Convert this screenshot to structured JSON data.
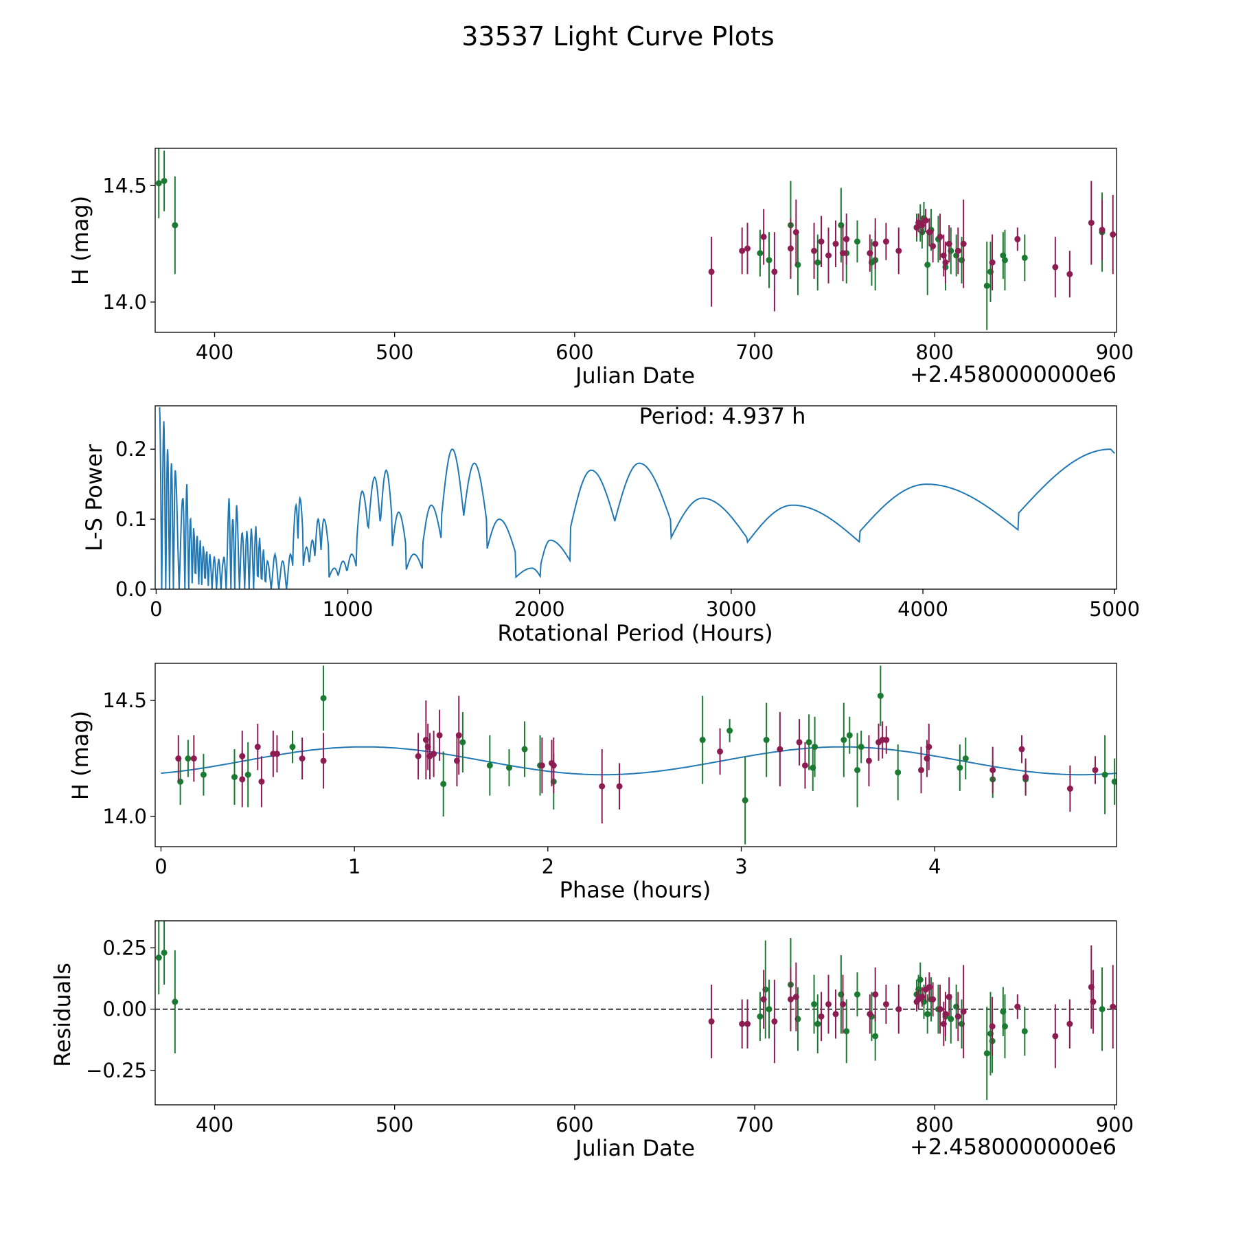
{
  "figure": {
    "title": "33537 Light Curve Plots"
  },
  "colors": {
    "series_a": "#1a7a32",
    "series_b": "#8c1c52",
    "curve": "#1f77b4",
    "axis": "#000000"
  },
  "chart_data": [
    {
      "id": "lightcurve",
      "type": "scatter",
      "title": "",
      "xlabel": "Julian Date",
      "ylabel": "H (mag)",
      "offset_text": "+2.4580000000e6",
      "xlim": [
        367,
        901
      ],
      "ylim": [
        13.87,
        14.66
      ],
      "xticks": [
        400,
        500,
        600,
        700,
        800,
        900
      ],
      "xtick_labels": [
        "400",
        "500",
        "600",
        "700",
        "800",
        "900"
      ],
      "yticks": [
        14.0,
        14.5
      ],
      "ytick_labels": [
        "14.0",
        "14.5"
      ],
      "series": [
        {
          "name": "green",
          "color": "#1a7a32",
          "x": [
            369,
            372,
            378,
            703,
            708,
            720,
            724,
            735,
            748,
            751,
            757,
            765,
            767,
            790,
            792,
            793,
            794,
            796,
            798,
            802,
            806,
            809,
            812,
            815,
            829,
            831,
            838,
            839,
            850,
            893
          ],
          "y": [
            14.51,
            14.52,
            14.33,
            14.21,
            14.18,
            14.33,
            14.16,
            14.17,
            14.33,
            14.21,
            14.26,
            14.17,
            14.18,
            14.32,
            14.34,
            14.3,
            14.36,
            14.16,
            14.31,
            14.27,
            14.15,
            14.22,
            14.2,
            14.18,
            14.07,
            14.13,
            14.2,
            14.18,
            14.19,
            14.3
          ],
          "err": [
            0.15,
            0.13,
            0.21,
            0.1,
            0.12,
            0.19,
            0.13,
            0.12,
            0.16,
            0.13,
            0.09,
            0.1,
            0.13,
            0.06,
            0.08,
            0.07,
            0.07,
            0.13,
            0.09,
            0.1,
            0.1,
            0.1,
            0.09,
            0.1,
            0.19,
            0.13,
            0.1,
            0.13,
            0.1,
            0.17
          ]
        },
        {
          "name": "purple",
          "color": "#8c1c52",
          "x": [
            676,
            693,
            696,
            705,
            711,
            720,
            723,
            733,
            737,
            741,
            745,
            749,
            751,
            764,
            767,
            773,
            780,
            790,
            791,
            793,
            795,
            797,
            799,
            803,
            805,
            806,
            808,
            813,
            816,
            832,
            846,
            867,
            875,
            887,
            893,
            899
          ],
          "y": [
            14.13,
            14.22,
            14.23,
            14.28,
            14.13,
            14.23,
            14.3,
            14.22,
            14.26,
            14.2,
            14.25,
            14.21,
            14.27,
            14.21,
            14.25,
            14.26,
            14.22,
            14.32,
            14.34,
            14.33,
            14.35,
            14.3,
            14.24,
            14.28,
            14.2,
            14.17,
            14.25,
            14.22,
            14.25,
            14.17,
            14.27,
            14.15,
            14.12,
            14.34,
            14.31,
            14.29
          ],
          "err": [
            0.15,
            0.1,
            0.11,
            0.12,
            0.17,
            0.13,
            0.14,
            0.12,
            0.11,
            0.12,
            0.1,
            0.12,
            0.11,
            0.08,
            0.11,
            0.08,
            0.1,
            0.04,
            0.04,
            0.04,
            0.05,
            0.06,
            0.07,
            0.1,
            0.09,
            0.09,
            0.08,
            0.1,
            0.19,
            0.12,
            0.05,
            0.13,
            0.1,
            0.18,
            0.13,
            0.17
          ]
        }
      ]
    },
    {
      "id": "periodogram",
      "type": "line",
      "title": "Period: 4.937 h",
      "xlabel": "Rotational Period (Hours)",
      "ylabel": "L-S Power",
      "xlim": [
        -5,
        5010
      ],
      "ylim": [
        0,
        0.262
      ],
      "xticks": [
        0,
        1000,
        2000,
        3000,
        4000,
        5000
      ],
      "xtick_labels": [
        "0",
        "1000",
        "2000",
        "3000",
        "4000",
        "5000"
      ],
      "yticks": [
        0.0,
        0.1,
        0.2
      ],
      "ytick_labels": [
        "0.0",
        "0.1",
        "0.2"
      ],
      "peaks": [
        [
          18,
          0.26
        ],
        [
          40,
          0.24
        ],
        [
          60,
          0.2
        ],
        [
          80,
          0.18
        ],
        [
          100,
          0.17
        ],
        [
          140,
          0.13
        ],
        [
          160,
          0.15
        ],
        [
          180,
          0.1
        ],
        [
          230,
          0.07
        ],
        [
          280,
          0.05
        ],
        [
          350,
          0.04
        ],
        [
          380,
          0.13
        ],
        [
          400,
          0.1
        ],
        [
          420,
          0.12
        ],
        [
          450,
          0.08
        ],
        [
          520,
          0.09
        ],
        [
          580,
          0.04
        ],
        [
          620,
          0.05
        ],
        [
          660,
          0.04
        ],
        [
          700,
          0.05
        ],
        [
          730,
          0.12
        ],
        [
          750,
          0.13
        ],
        [
          785,
          0.06
        ],
        [
          815,
          0.07
        ],
        [
          845,
          0.1
        ],
        [
          875,
          0.1
        ],
        [
          930,
          0.03
        ],
        [
          975,
          0.04
        ],
        [
          1020,
          0.05
        ],
        [
          1075,
          0.14
        ],
        [
          1140,
          0.16
        ],
        [
          1200,
          0.17
        ],
        [
          1265,
          0.11
        ],
        [
          1345,
          0.05
        ],
        [
          1435,
          0.12
        ],
        [
          1545,
          0.2
        ],
        [
          1660,
          0.18
        ],
        [
          1790,
          0.1
        ],
        [
          1960,
          0.03
        ],
        [
          2055,
          0.07
        ],
        [
          2270,
          0.17
        ],
        [
          2520,
          0.18
        ],
        [
          2850,
          0.13
        ],
        [
          3320,
          0.12
        ],
        [
          4020,
          0.15
        ],
        [
          4980,
          0.2
        ]
      ]
    },
    {
      "id": "phased",
      "type": "scatter",
      "title": "",
      "xlabel": "Phase (hours)",
      "ylabel": "H (mag)",
      "xlim": [
        -0.03,
        4.94
      ],
      "ylim": [
        13.87,
        14.66
      ],
      "xticks": [
        0,
        1,
        2,
        3,
        4
      ],
      "xtick_labels": [
        "0",
        "1",
        "2",
        "3",
        "4"
      ],
      "yticks": [
        14.0,
        14.5
      ],
      "ytick_labels": [
        "14.0",
        "14.5"
      ],
      "model": {
        "mean": 14.24,
        "amplitude": 0.06,
        "peaks_at_hours": [
          1.05,
          3.52
        ],
        "period_hours": 4.937
      },
      "series": [
        {
          "name": "green",
          "color": "#1a7a32",
          "x": [
            0.1,
            0.14,
            0.22,
            0.38,
            0.45,
            0.68,
            0.84,
            1.46,
            1.56,
            1.7,
            1.8,
            1.88,
            1.96,
            2.03,
            2.8,
            2.94,
            3.02,
            3.13,
            3.35,
            3.37,
            3.38,
            3.53,
            3.56,
            3.6,
            3.72,
            3.62,
            3.81,
            4.13,
            4.16,
            4.3,
            4.47,
            4.88,
            4.93
          ],
          "y": [
            14.15,
            14.25,
            14.18,
            14.17,
            14.18,
            14.3,
            14.51,
            14.14,
            14.32,
            14.22,
            14.21,
            14.29,
            14.22,
            14.15,
            14.33,
            14.37,
            14.07,
            14.33,
            14.32,
            14.21,
            14.3,
            14.33,
            14.35,
            14.2,
            14.52,
            14.3,
            14.19,
            14.21,
            14.25,
            14.16,
            14.16,
            14.18,
            14.15
          ],
          "err": [
            0.1,
            0.08,
            0.09,
            0.12,
            0.14,
            0.07,
            0.14,
            0.14,
            0.13,
            0.13,
            0.08,
            0.12,
            0.13,
            0.12,
            0.19,
            0.05,
            0.19,
            0.16,
            0.12,
            0.1,
            0.13,
            0.16,
            0.08,
            0.16,
            0.13,
            0.07,
            0.12,
            0.1,
            0.09,
            0.08,
            0.07,
            0.17,
            0.1
          ]
        },
        {
          "name": "purple",
          "color": "#8c1c52",
          "x": [
            0.09,
            0.17,
            0.42,
            0.42,
            0.5,
            0.52,
            0.58,
            0.6,
            0.73,
            0.84,
            1.33,
            1.37,
            1.38,
            1.39,
            1.41,
            1.44,
            1.53,
            1.54,
            1.97,
            2.02,
            2.03,
            2.28,
            2.37,
            2.89,
            3.2,
            3.3,
            3.33,
            3.66,
            3.71,
            3.73,
            3.75,
            3.93,
            3.96,
            3.97,
            4.3,
            4.45,
            4.47,
            4.7,
            4.83
          ],
          "y": [
            14.25,
            14.25,
            14.26,
            14.16,
            14.3,
            14.15,
            14.27,
            14.27,
            14.25,
            14.24,
            14.26,
            14.33,
            14.3,
            14.26,
            14.27,
            14.35,
            14.24,
            14.35,
            14.22,
            14.23,
            14.22,
            14.13,
            14.13,
            14.28,
            14.29,
            14.32,
            14.22,
            14.24,
            14.32,
            14.33,
            14.33,
            14.2,
            14.25,
            14.3,
            14.2,
            14.29,
            14.17,
            14.12,
            14.2
          ],
          "err": [
            0.1,
            0.1,
            0.11,
            0.12,
            0.1,
            0.11,
            0.1,
            0.08,
            0.09,
            0.12,
            0.1,
            0.17,
            0.1,
            0.1,
            0.1,
            0.11,
            0.11,
            0.17,
            0.12,
            0.1,
            0.12,
            0.16,
            0.1,
            0.1,
            0.16,
            0.1,
            0.1,
            0.11,
            0.08,
            0.08,
            0.06,
            0.1,
            0.08,
            0.1,
            0.1,
            0.06,
            0.08,
            0.1,
            0.06
          ]
        }
      ]
    },
    {
      "id": "residuals",
      "type": "scatter",
      "title": "",
      "xlabel": "Julian Date",
      "ylabel": "Residuals",
      "offset_text": "+2.4580000000e6",
      "reference_line": 0.0,
      "xlim": [
        367,
        901
      ],
      "ylim": [
        -0.39,
        0.36
      ],
      "xticks": [
        400,
        500,
        600,
        700,
        800,
        900
      ],
      "xtick_labels": [
        "400",
        "500",
        "600",
        "700",
        "800",
        "900"
      ],
      "yticks": [
        0.25,
        0.0,
        -0.25
      ],
      "ytick_labels": [
        "0.25",
        "0.00",
        "−0.25"
      ],
      "series": [
        {
          "name": "green",
          "color": "#1a7a32",
          "x": [
            369,
            372,
            378,
            703,
            706,
            708,
            720,
            724,
            733,
            735,
            748,
            751,
            757,
            765,
            767,
            790,
            791,
            792,
            794,
            796,
            798,
            802,
            806,
            809,
            812,
            815,
            829,
            831,
            832,
            838,
            839,
            850,
            893
          ],
          "y": [
            0.21,
            0.23,
            0.03,
            -0.03,
            0.08,
            0.0,
            0.1,
            -0.04,
            0.02,
            -0.06,
            0.06,
            -0.09,
            0.06,
            -0.03,
            -0.11,
            0.06,
            0.08,
            0.12,
            0.03,
            -0.02,
            0.04,
            0.0,
            -0.03,
            -0.04,
            0.01,
            -0.06,
            -0.18,
            -0.1,
            -0.13,
            -0.01,
            -0.07,
            -0.09,
            0.0
          ],
          "err": [
            0.15,
            0.13,
            0.21,
            0.1,
            0.2,
            0.12,
            0.19,
            0.13,
            0.12,
            0.12,
            0.16,
            0.13,
            0.09,
            0.1,
            0.1,
            0.06,
            0.06,
            0.07,
            0.07,
            0.08,
            0.09,
            0.1,
            0.1,
            0.1,
            0.09,
            0.1,
            0.19,
            0.17,
            0.13,
            0.1,
            0.13,
            0.1,
            0.17
          ]
        },
        {
          "name": "purple",
          "color": "#8c1c52",
          "x": [
            676,
            693,
            696,
            705,
            711,
            720,
            723,
            737,
            741,
            745,
            749,
            764,
            767,
            773,
            780,
            790,
            791,
            793,
            795,
            797,
            799,
            803,
            805,
            806,
            808,
            813,
            816,
            832,
            846,
            867,
            875,
            887,
            888,
            899
          ],
          "y": [
            -0.05,
            -0.06,
            -0.06,
            0.04,
            -0.05,
            0.04,
            0.05,
            -0.03,
            0.02,
            -0.02,
            0.02,
            -0.02,
            0.06,
            0.02,
            0.0,
            0.03,
            0.04,
            0.05,
            0.08,
            0.09,
            0.04,
            0.0,
            -0.06,
            -0.02,
            0.05,
            -0.03,
            -0.01,
            -0.07,
            0.01,
            -0.11,
            -0.06,
            0.09,
            0.03,
            0.01
          ],
          "err": [
            0.15,
            0.1,
            0.1,
            0.12,
            0.17,
            0.13,
            0.14,
            0.1,
            0.12,
            0.1,
            0.12,
            0.08,
            0.11,
            0.08,
            0.1,
            0.04,
            0.04,
            0.04,
            0.05,
            0.06,
            0.07,
            0.1,
            0.09,
            0.09,
            0.08,
            0.1,
            0.19,
            0.12,
            0.05,
            0.13,
            0.1,
            0.17,
            0.13,
            0.17
          ]
        }
      ]
    }
  ]
}
